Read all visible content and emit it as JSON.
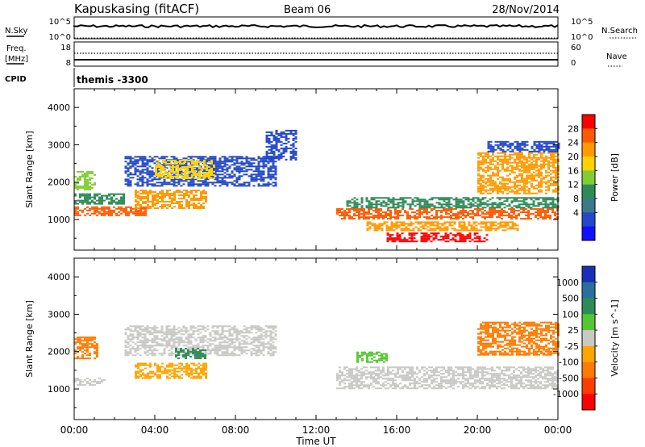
{
  "header": {
    "station": "Kapuskasing (fitACF)",
    "beam": "Beam 06",
    "date": "28/Nov/2014"
  },
  "noise_panel": {
    "left_label": "N.Sky",
    "left_ticks": [
      "10^5",
      "10^0"
    ],
    "right_ticks": [
      "10^5",
      "10^0"
    ],
    "right_label": "N.Search"
  },
  "freq_panel": {
    "left_label_1": "Freq.",
    "left_label_2": "[MHz]",
    "left_ticks": [
      "18",
      "8"
    ],
    "right_ticks": [
      "60",
      "0"
    ],
    "right_label": "Nave"
  },
  "cpid": {
    "label": "CPID",
    "value": "themis -3300"
  },
  "x_axis": {
    "title": "Time UT",
    "ticks": [
      "00:00",
      "04:00",
      "08:00",
      "12:00",
      "16:00",
      "20:00",
      "00:00"
    ]
  },
  "chart_data": [
    {
      "type": "heatmap",
      "name": "power",
      "ylabel": "Slant Range [km]",
      "yticks": [
        1000,
        2000,
        3000,
        4000
      ],
      "ylim": [
        180,
        4500
      ],
      "xlim_hours": [
        0,
        24
      ],
      "colorbar": {
        "label": "Power [dB]",
        "tick_labels": [
          "28",
          "24",
          "20",
          "16",
          "12",
          "8",
          "4"
        ],
        "colors": [
          "#ff0000",
          "#ff5a00",
          "#ff9a00",
          "#ffd200",
          "#7fcf33",
          "#2e8b57",
          "#3a7a8c",
          "#2348c9",
          "#1010ff"
        ]
      },
      "regions": [
        {
          "t": [
            0.0,
            3.5
          ],
          "r": [
            1100,
            1350
          ],
          "color": "#ff5a00"
        },
        {
          "t": [
            0.0,
            2.5
          ],
          "r": [
            1400,
            1700
          ],
          "color": "#2e8b57"
        },
        {
          "t": [
            0.0,
            1.0
          ],
          "r": [
            1800,
            2300
          ],
          "color": "#7fcf33"
        },
        {
          "t": [
            2.5,
            10.0
          ],
          "r": [
            1900,
            2700
          ],
          "color": "#2348c9"
        },
        {
          "t": [
            4.0,
            7.0
          ],
          "r": [
            2100,
            2600
          ],
          "color": "#ffd200"
        },
        {
          "t": [
            3.0,
            6.5
          ],
          "r": [
            1300,
            1800
          ],
          "color": "#ff9a00"
        },
        {
          "t": [
            9.5,
            11.0
          ],
          "r": [
            2600,
            3400
          ],
          "color": "#2348c9"
        },
        {
          "t": [
            13.0,
            24.0
          ],
          "r": [
            1000,
            1300
          ],
          "color": "#ff5a00"
        },
        {
          "t": [
            13.5,
            24.0
          ],
          "r": [
            1300,
            1600
          ],
          "color": "#2e8b57"
        },
        {
          "t": [
            14.5,
            22.0
          ],
          "r": [
            700,
            950
          ],
          "color": "#ff9a00"
        },
        {
          "t": [
            15.5,
            20.5
          ],
          "r": [
            400,
            650
          ],
          "color": "#ff0000"
        },
        {
          "t": [
            20.0,
            24.0
          ],
          "r": [
            1700,
            2800
          ],
          "color": "#ff9a00"
        },
        {
          "t": [
            20.5,
            24.0
          ],
          "r": [
            2800,
            3100
          ],
          "color": "#2348c9"
        }
      ]
    },
    {
      "type": "heatmap",
      "name": "velocity",
      "ylabel": "Slant Range [km]",
      "yticks": [
        1000,
        2000,
        3000,
        4000
      ],
      "ylim": [
        180,
        4500
      ],
      "xlim_hours": [
        0,
        24
      ],
      "colorbar": {
        "label": "Velocity [m s^-1]",
        "tick_labels": [
          "1000",
          "500",
          "100",
          "25",
          "-25",
          "-100",
          "-500",
          "-1000"
        ],
        "colors": [
          "#1a2fb8",
          "#2a6fa0",
          "#2e8b57",
          "#55c633",
          "#c8c8c4",
          "#ffa500",
          "#ff7a00",
          "#ff3c00",
          "#ff0000"
        ]
      },
      "regions": [
        {
          "t": [
            0.0,
            1.5
          ],
          "r": [
            1100,
            1300
          ],
          "color": "#c8c8c4"
        },
        {
          "t": [
            0.0,
            1.2
          ],
          "r": [
            1800,
            2400
          ],
          "color": "#ff7a00"
        },
        {
          "t": [
            2.5,
            10.0
          ],
          "r": [
            1900,
            2700
          ],
          "color": "#c8c8c4"
        },
        {
          "t": [
            3.0,
            6.5
          ],
          "r": [
            1300,
            1700
          ],
          "color": "#ffa500"
        },
        {
          "t": [
            5.0,
            6.5
          ],
          "r": [
            1800,
            2100
          ],
          "color": "#2e8b57"
        },
        {
          "t": [
            13.0,
            24.0
          ],
          "r": [
            1000,
            1600
          ],
          "color": "#c8c8c4"
        },
        {
          "t": [
            14.0,
            15.5
          ],
          "r": [
            1700,
            2000
          ],
          "color": "#55c633"
        },
        {
          "t": [
            20.0,
            24.0
          ],
          "r": [
            1900,
            2800
          ],
          "color": "#ff7a00"
        }
      ]
    }
  ]
}
